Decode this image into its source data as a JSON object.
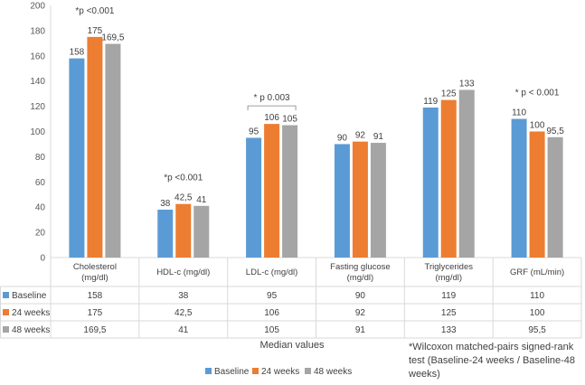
{
  "chart_data": {
    "type": "bar",
    "categories": [
      "Cholesterol (mg/dl)",
      "HDL-c (mg/dl)",
      "LDL-c  (mg/dl)",
      "Fasting glucose (mg/dl)",
      "Triglycerides (mg/dl)",
      "GRF (mL/min)"
    ],
    "series": [
      {
        "name": "Baseline",
        "values": [
          158,
          38,
          95,
          90,
          119,
          110
        ],
        "labels": [
          "158",
          "38",
          "95",
          "90",
          "119",
          "110"
        ],
        "color": "#5B9BD5"
      },
      {
        "name": "24 weeks",
        "values": [
          175,
          42.5,
          106,
          92,
          125,
          100
        ],
        "labels": [
          "175",
          "42,5",
          "106",
          "92",
          "125",
          "100"
        ],
        "color": "#ED7D31"
      },
      {
        "name": "48 weeks",
        "values": [
          169.5,
          41,
          105,
          91,
          133,
          95.5
        ],
        "labels": [
          "169,5",
          "41",
          "105",
          "91",
          "133",
          "95,5"
        ],
        "color": "#A5A5A5"
      }
    ],
    "ylim": [
      0,
      200
    ],
    "yticks": [
      0,
      20,
      40,
      60,
      80,
      100,
      120,
      140,
      160,
      180,
      200
    ],
    "xlabel": "Median values",
    "annotations": [
      {
        "category": 0,
        "text": "*p <0.001"
      },
      {
        "category": 1,
        "text": "*p <0.001"
      },
      {
        "category": 2,
        "text": "* p 0.003"
      },
      {
        "category": 5,
        "text": "* p < 0.001"
      }
    ],
    "legend_placement": "bottom",
    "data_table": true,
    "grid": false,
    "footnote": "*Wilcoxon matched-pairs signed-rank test (Baseline-24 weeks / Baseline-48 weeks)"
  }
}
